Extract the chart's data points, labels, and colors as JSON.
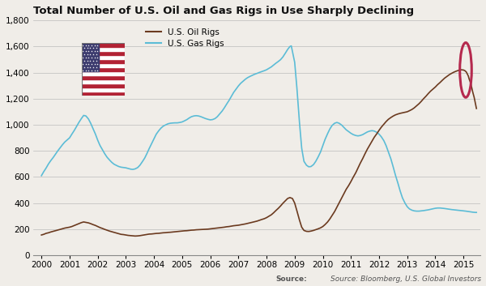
{
  "title": "Total Number of U.S. Oil and Gas Rigs in Use Sharply Declining",
  "title_fontsize": 9.5,
  "source_text": "Source: Bloomberg, U.S. Global Investors",
  "bg_color": "#f0ede8",
  "oil_color": "#6b3a1f",
  "gas_color": "#5bbcd6",
  "oil_label": "U.S. Oil Rigs",
  "gas_label": "U.S. Gas Rigs",
  "circle_color": "#b5294e",
  "ylim": [
    0,
    1800
  ],
  "yticks": [
    0,
    200,
    400,
    600,
    800,
    1000,
    1200,
    1400,
    1600,
    1800
  ],
  "xlim": [
    1999.7,
    2015.6
  ],
  "xticks": [
    2000,
    2001,
    2002,
    2003,
    2004,
    2005,
    2006,
    2007,
    2008,
    2009,
    2010,
    2011,
    2012,
    2013,
    2014,
    2015
  ],
  "oil_data": [
    [
      2000.0,
      155
    ],
    [
      2000.08,
      160
    ],
    [
      2000.17,
      168
    ],
    [
      2000.25,
      172
    ],
    [
      2000.33,
      178
    ],
    [
      2000.42,
      183
    ],
    [
      2000.5,
      188
    ],
    [
      2000.58,
      193
    ],
    [
      2000.67,
      198
    ],
    [
      2000.75,
      203
    ],
    [
      2000.83,
      208
    ],
    [
      2000.92,
      212
    ],
    [
      2001.0,
      215
    ],
    [
      2001.08,
      220
    ],
    [
      2001.17,
      228
    ],
    [
      2001.25,
      235
    ],
    [
      2001.33,
      242
    ],
    [
      2001.42,
      250
    ],
    [
      2001.5,
      255
    ],
    [
      2001.58,
      252
    ],
    [
      2001.67,
      248
    ],
    [
      2001.75,
      242
    ],
    [
      2001.83,
      235
    ],
    [
      2001.92,
      228
    ],
    [
      2002.0,
      220
    ],
    [
      2002.08,
      212
    ],
    [
      2002.17,
      205
    ],
    [
      2002.25,
      198
    ],
    [
      2002.33,
      192
    ],
    [
      2002.42,
      185
    ],
    [
      2002.5,
      180
    ],
    [
      2002.58,
      175
    ],
    [
      2002.67,
      170
    ],
    [
      2002.75,
      165
    ],
    [
      2002.83,
      160
    ],
    [
      2002.92,
      158
    ],
    [
      2003.0,
      155
    ],
    [
      2003.08,
      152
    ],
    [
      2003.17,
      150
    ],
    [
      2003.25,
      148
    ],
    [
      2003.33,
      147
    ],
    [
      2003.42,
      148
    ],
    [
      2003.5,
      150
    ],
    [
      2003.58,
      153
    ],
    [
      2003.67,
      156
    ],
    [
      2003.75,
      160
    ],
    [
      2003.83,
      162
    ],
    [
      2003.92,
      163
    ],
    [
      2004.0,
      165
    ],
    [
      2004.08,
      167
    ],
    [
      2004.17,
      168
    ],
    [
      2004.25,
      170
    ],
    [
      2004.33,
      172
    ],
    [
      2004.42,
      173
    ],
    [
      2004.5,
      175
    ],
    [
      2004.58,
      176
    ],
    [
      2004.67,
      178
    ],
    [
      2004.75,
      180
    ],
    [
      2004.83,
      182
    ],
    [
      2004.92,
      184
    ],
    [
      2005.0,
      185
    ],
    [
      2005.08,
      187
    ],
    [
      2005.17,
      188
    ],
    [
      2005.25,
      190
    ],
    [
      2005.33,
      192
    ],
    [
      2005.42,
      193
    ],
    [
      2005.5,
      195
    ],
    [
      2005.58,
      196
    ],
    [
      2005.67,
      197
    ],
    [
      2005.75,
      198
    ],
    [
      2005.83,
      199
    ],
    [
      2005.92,
      200
    ],
    [
      2006.0,
      202
    ],
    [
      2006.08,
      204
    ],
    [
      2006.17,
      206
    ],
    [
      2006.25,
      208
    ],
    [
      2006.33,
      210
    ],
    [
      2006.42,
      212
    ],
    [
      2006.5,
      215
    ],
    [
      2006.58,
      218
    ],
    [
      2006.67,
      220
    ],
    [
      2006.75,
      223
    ],
    [
      2006.83,
      226
    ],
    [
      2006.92,
      228
    ],
    [
      2007.0,
      230
    ],
    [
      2007.08,
      233
    ],
    [
      2007.17,
      237
    ],
    [
      2007.25,
      240
    ],
    [
      2007.33,
      244
    ],
    [
      2007.42,
      248
    ],
    [
      2007.5,
      252
    ],
    [
      2007.58,
      257
    ],
    [
      2007.67,
      262
    ],
    [
      2007.75,
      268
    ],
    [
      2007.83,
      274
    ],
    [
      2007.92,
      280
    ],
    [
      2008.0,
      288
    ],
    [
      2008.08,
      298
    ],
    [
      2008.17,
      310
    ],
    [
      2008.25,
      325
    ],
    [
      2008.33,
      342
    ],
    [
      2008.42,
      360
    ],
    [
      2008.5,
      378
    ],
    [
      2008.58,
      398
    ],
    [
      2008.67,
      418
    ],
    [
      2008.75,
      435
    ],
    [
      2008.83,
      442
    ],
    [
      2008.92,
      435
    ],
    [
      2009.0,
      400
    ],
    [
      2009.08,
      340
    ],
    [
      2009.17,
      270
    ],
    [
      2009.25,
      215
    ],
    [
      2009.33,
      190
    ],
    [
      2009.42,
      183
    ],
    [
      2009.5,
      182
    ],
    [
      2009.58,
      185
    ],
    [
      2009.67,
      190
    ],
    [
      2009.75,
      196
    ],
    [
      2009.83,
      202
    ],
    [
      2009.92,
      210
    ],
    [
      2010.0,
      220
    ],
    [
      2010.08,
      235
    ],
    [
      2010.17,
      255
    ],
    [
      2010.25,
      278
    ],
    [
      2010.33,
      305
    ],
    [
      2010.42,
      335
    ],
    [
      2010.5,
      368
    ],
    [
      2010.58,
      402
    ],
    [
      2010.67,
      438
    ],
    [
      2010.75,
      472
    ],
    [
      2010.83,
      505
    ],
    [
      2010.92,
      535
    ],
    [
      2011.0,
      565
    ],
    [
      2011.08,
      598
    ],
    [
      2011.17,
      632
    ],
    [
      2011.25,
      668
    ],
    [
      2011.33,
      705
    ],
    [
      2011.42,
      742
    ],
    [
      2011.5,
      778
    ],
    [
      2011.58,
      812
    ],
    [
      2011.67,
      845
    ],
    [
      2011.75,
      875
    ],
    [
      2011.83,
      905
    ],
    [
      2011.92,
      932
    ],
    [
      2012.0,
      958
    ],
    [
      2012.08,
      982
    ],
    [
      2012.17,
      1005
    ],
    [
      2012.25,
      1025
    ],
    [
      2012.33,
      1042
    ],
    [
      2012.42,
      1056
    ],
    [
      2012.5,
      1067
    ],
    [
      2012.58,
      1076
    ],
    [
      2012.67,
      1083
    ],
    [
      2012.75,
      1088
    ],
    [
      2012.83,
      1092
    ],
    [
      2012.92,
      1096
    ],
    [
      2013.0,
      1100
    ],
    [
      2013.08,
      1108
    ],
    [
      2013.17,
      1118
    ],
    [
      2013.25,
      1130
    ],
    [
      2013.33,
      1145
    ],
    [
      2013.42,
      1162
    ],
    [
      2013.5,
      1180
    ],
    [
      2013.58,
      1200
    ],
    [
      2013.67,
      1220
    ],
    [
      2013.75,
      1240
    ],
    [
      2013.83,
      1258
    ],
    [
      2013.92,
      1275
    ],
    [
      2014.0,
      1290
    ],
    [
      2014.08,
      1308
    ],
    [
      2014.17,
      1325
    ],
    [
      2014.25,
      1342
    ],
    [
      2014.33,
      1358
    ],
    [
      2014.42,
      1372
    ],
    [
      2014.5,
      1385
    ],
    [
      2014.58,
      1395
    ],
    [
      2014.67,
      1405
    ],
    [
      2014.75,
      1412
    ],
    [
      2014.83,
      1418
    ],
    [
      2014.92,
      1422
    ],
    [
      2015.0,
      1420
    ],
    [
      2015.05,
      1415
    ],
    [
      2015.1,
      1405
    ],
    [
      2015.13,
      1392
    ],
    [
      2015.17,
      1375
    ],
    [
      2015.2,
      1352
    ],
    [
      2015.25,
      1322
    ],
    [
      2015.29,
      1288
    ],
    [
      2015.33,
      1250
    ],
    [
      2015.38,
      1210
    ],
    [
      2015.42,
      1168
    ],
    [
      2015.46,
      1125
    ]
  ],
  "gas_data": [
    [
      2000.0,
      610
    ],
    [
      2000.08,
      640
    ],
    [
      2000.17,
      670
    ],
    [
      2000.25,
      700
    ],
    [
      2000.33,
      725
    ],
    [
      2000.42,
      750
    ],
    [
      2000.5,
      775
    ],
    [
      2000.58,
      800
    ],
    [
      2000.67,
      825
    ],
    [
      2000.75,
      848
    ],
    [
      2000.83,
      868
    ],
    [
      2000.92,
      885
    ],
    [
      2001.0,
      900
    ],
    [
      2001.08,
      928
    ],
    [
      2001.17,
      958
    ],
    [
      2001.25,
      988
    ],
    [
      2001.33,
      1018
    ],
    [
      2001.42,
      1048
    ],
    [
      2001.5,
      1072
    ],
    [
      2001.58,
      1068
    ],
    [
      2001.67,
      1045
    ],
    [
      2001.75,
      1012
    ],
    [
      2001.83,
      972
    ],
    [
      2001.92,
      928
    ],
    [
      2002.0,
      882
    ],
    [
      2002.08,
      842
    ],
    [
      2002.17,
      808
    ],
    [
      2002.25,
      778
    ],
    [
      2002.33,
      752
    ],
    [
      2002.42,
      730
    ],
    [
      2002.5,
      712
    ],
    [
      2002.58,
      698
    ],
    [
      2002.67,
      688
    ],
    [
      2002.75,
      680
    ],
    [
      2002.83,
      675
    ],
    [
      2002.92,
      672
    ],
    [
      2003.0,
      670
    ],
    [
      2003.08,
      665
    ],
    [
      2003.17,
      660
    ],
    [
      2003.25,
      658
    ],
    [
      2003.33,
      662
    ],
    [
      2003.42,
      672
    ],
    [
      2003.5,
      690
    ],
    [
      2003.58,
      715
    ],
    [
      2003.67,
      745
    ],
    [
      2003.75,
      780
    ],
    [
      2003.83,
      818
    ],
    [
      2003.92,
      858
    ],
    [
      2004.0,
      895
    ],
    [
      2004.08,
      928
    ],
    [
      2004.17,
      955
    ],
    [
      2004.25,
      975
    ],
    [
      2004.33,
      990
    ],
    [
      2004.42,
      1000
    ],
    [
      2004.5,
      1008
    ],
    [
      2004.58,
      1012
    ],
    [
      2004.67,
      1014
    ],
    [
      2004.75,
      1015
    ],
    [
      2004.83,
      1015
    ],
    [
      2004.92,
      1018
    ],
    [
      2005.0,
      1022
    ],
    [
      2005.08,
      1030
    ],
    [
      2005.17,
      1040
    ],
    [
      2005.25,
      1052
    ],
    [
      2005.33,
      1062
    ],
    [
      2005.42,
      1068
    ],
    [
      2005.5,
      1070
    ],
    [
      2005.58,
      1068
    ],
    [
      2005.67,
      1062
    ],
    [
      2005.75,
      1055
    ],
    [
      2005.83,
      1048
    ],
    [
      2005.92,
      1042
    ],
    [
      2006.0,
      1038
    ],
    [
      2006.08,
      1040
    ],
    [
      2006.17,
      1048
    ],
    [
      2006.25,
      1062
    ],
    [
      2006.33,
      1082
    ],
    [
      2006.42,
      1105
    ],
    [
      2006.5,
      1130
    ],
    [
      2006.58,
      1158
    ],
    [
      2006.67,
      1188
    ],
    [
      2006.75,
      1218
    ],
    [
      2006.83,
      1248
    ],
    [
      2006.92,
      1275
    ],
    [
      2007.0,
      1298
    ],
    [
      2007.08,
      1318
    ],
    [
      2007.17,
      1335
    ],
    [
      2007.25,
      1350
    ],
    [
      2007.33,
      1362
    ],
    [
      2007.42,
      1372
    ],
    [
      2007.5,
      1380
    ],
    [
      2007.58,
      1388
    ],
    [
      2007.67,
      1395
    ],
    [
      2007.75,
      1402
    ],
    [
      2007.83,
      1408
    ],
    [
      2007.92,
      1415
    ],
    [
      2008.0,
      1422
    ],
    [
      2008.08,
      1432
    ],
    [
      2008.17,
      1444
    ],
    [
      2008.25,
      1458
    ],
    [
      2008.33,
      1472
    ],
    [
      2008.42,
      1486
    ],
    [
      2008.5,
      1500
    ],
    [
      2008.58,
      1520
    ],
    [
      2008.67,
      1550
    ],
    [
      2008.75,
      1578
    ],
    [
      2008.83,
      1600
    ],
    [
      2008.88,
      1605
    ],
    [
      2009.0,
      1480
    ],
    [
      2009.08,
      1280
    ],
    [
      2009.17,
      1020
    ],
    [
      2009.25,
      820
    ],
    [
      2009.33,
      720
    ],
    [
      2009.42,
      690
    ],
    [
      2009.5,
      678
    ],
    [
      2009.58,
      680
    ],
    [
      2009.67,
      695
    ],
    [
      2009.75,
      720
    ],
    [
      2009.83,
      752
    ],
    [
      2009.92,
      792
    ],
    [
      2010.0,
      840
    ],
    [
      2010.08,
      888
    ],
    [
      2010.17,
      932
    ],
    [
      2010.25,
      968
    ],
    [
      2010.33,
      995
    ],
    [
      2010.42,
      1012
    ],
    [
      2010.5,
      1018
    ],
    [
      2010.58,
      1012
    ],
    [
      2010.67,
      998
    ],
    [
      2010.75,
      980
    ],
    [
      2010.83,
      962
    ],
    [
      2010.92,
      948
    ],
    [
      2011.0,
      935
    ],
    [
      2011.08,
      925
    ],
    [
      2011.17,
      918
    ],
    [
      2011.25,
      915
    ],
    [
      2011.33,
      918
    ],
    [
      2011.42,
      925
    ],
    [
      2011.5,
      935
    ],
    [
      2011.58,
      945
    ],
    [
      2011.67,
      952
    ],
    [
      2011.75,
      955
    ],
    [
      2011.83,
      952
    ],
    [
      2011.92,
      942
    ],
    [
      2012.0,
      928
    ],
    [
      2012.08,
      908
    ],
    [
      2012.17,
      878
    ],
    [
      2012.25,
      840
    ],
    [
      2012.33,
      792
    ],
    [
      2012.42,
      738
    ],
    [
      2012.5,
      678
    ],
    [
      2012.58,
      615
    ],
    [
      2012.67,
      552
    ],
    [
      2012.75,
      492
    ],
    [
      2012.83,
      440
    ],
    [
      2012.92,
      400
    ],
    [
      2013.0,
      372
    ],
    [
      2013.08,
      355
    ],
    [
      2013.17,
      345
    ],
    [
      2013.25,
      340
    ],
    [
      2013.33,
      338
    ],
    [
      2013.42,
      338
    ],
    [
      2013.5,
      340
    ],
    [
      2013.58,
      342
    ],
    [
      2013.67,
      345
    ],
    [
      2013.75,
      348
    ],
    [
      2013.83,
      352
    ],
    [
      2013.92,
      356
    ],
    [
      2014.0,
      360
    ],
    [
      2014.08,
      362
    ],
    [
      2014.17,
      362
    ],
    [
      2014.25,
      360
    ],
    [
      2014.33,
      358
    ],
    [
      2014.42,
      355
    ],
    [
      2014.5,
      352
    ],
    [
      2014.58,
      350
    ],
    [
      2014.67,
      348
    ],
    [
      2014.75,
      346
    ],
    [
      2014.83,
      344
    ],
    [
      2014.92,
      342
    ],
    [
      2015.0,
      340
    ],
    [
      2015.08,
      338
    ],
    [
      2015.17,
      335
    ],
    [
      2015.25,
      332
    ],
    [
      2015.33,
      330
    ],
    [
      2015.42,
      328
    ],
    [
      2015.46,
      328
    ]
  ]
}
